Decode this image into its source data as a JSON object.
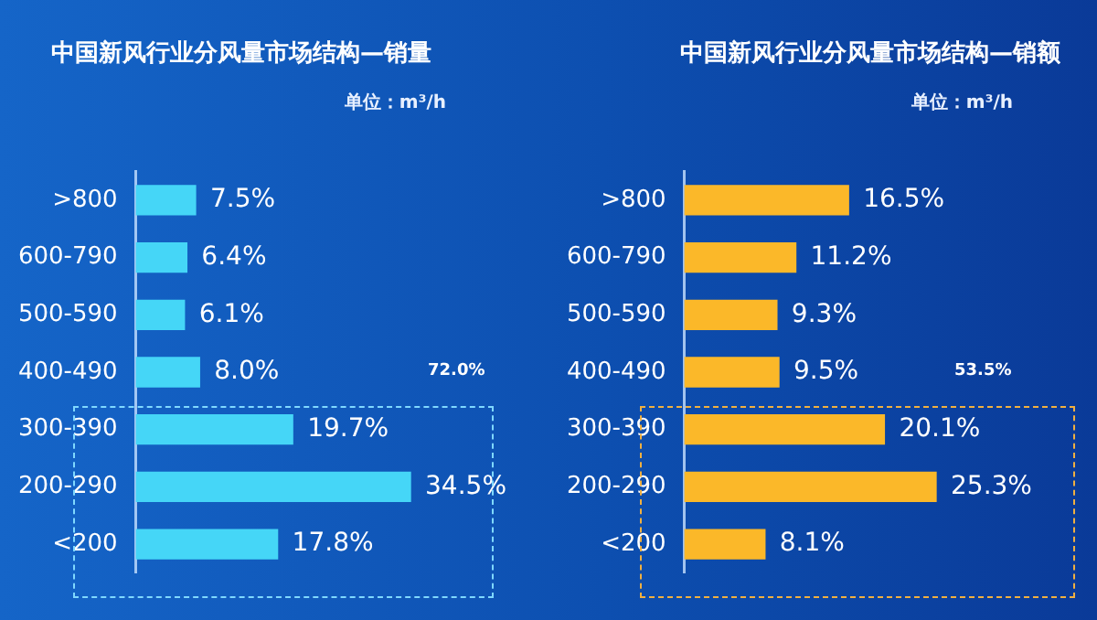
{
  "chart_data": [
    {
      "type": "bar",
      "orientation": "horizontal",
      "title": "中国新风行业分风量市场结构—销量",
      "subtitle": "单位：m³/h",
      "categories": [
        ">800",
        "600-790",
        "500-590",
        "400-490",
        "300-390",
        "200-290",
        "<200"
      ],
      "values": [
        7.5,
        6.4,
        6.1,
        8.0,
        19.7,
        34.5,
        17.8
      ],
      "value_labels": [
        "7.5%",
        "6.4%",
        "6.1%",
        "8.0%",
        "19.7%",
        "34.5%",
        "17.8%"
      ],
      "color": "#45d6f7",
      "annotations": [
        "72.0%"
      ]
    },
    {
      "type": "bar",
      "orientation": "horizontal",
      "title": "中国新风行业分风量市场结构—销额",
      "subtitle": "单位：m³/h",
      "categories": [
        ">800",
        "600-790",
        "500-590",
        "400-490",
        "300-390",
        "200-290",
        "<200"
      ],
      "values": [
        16.5,
        11.2,
        9.3,
        9.5,
        20.1,
        25.3,
        8.1
      ],
      "value_labels": [
        "16.5%",
        "11.2%",
        "9.3%",
        "9.5%",
        "20.1%",
        "25.3%",
        "8.1%"
      ],
      "color": "#fbb829",
      "annotations": [
        "53.5%"
      ]
    }
  ]
}
